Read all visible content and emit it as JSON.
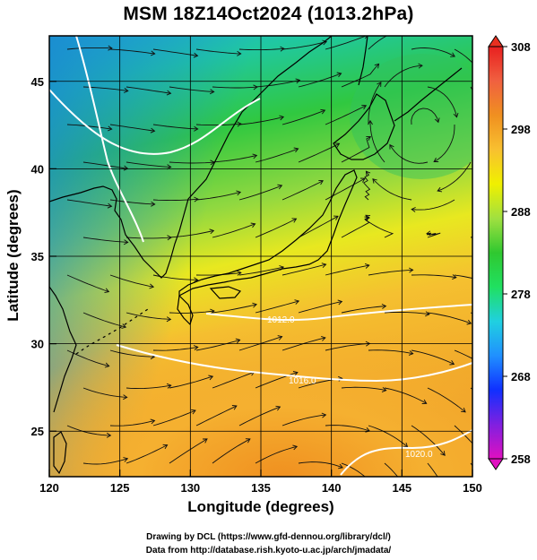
{
  "title": "MSM 18Z14Oct2024 (1013.2hPa)",
  "axes": {
    "xlabel": "Longitude (degrees)",
    "ylabel": "Latitude  (degrees)",
    "xlim": [
      120,
      150
    ],
    "ylim": [
      22.4,
      47.6
    ],
    "xticks": [
      120,
      125,
      130,
      135,
      140,
      145,
      150
    ],
    "yticks": [
      25,
      30,
      35,
      40,
      45
    ]
  },
  "colorbar": {
    "min": 258,
    "max": 308,
    "ticks": [
      258,
      268,
      278,
      288,
      298,
      308
    ],
    "colors": [
      "#e010c0",
      "#8020e0",
      "#1030ff",
      "#2090ff",
      "#20d0e0",
      "#20e060",
      "#30c830",
      "#a0e040",
      "#f0f000",
      "#f8c030",
      "#f09020",
      "#f06040",
      "#e82020"
    ]
  },
  "isobars": [
    {
      "label": "1012.0"
    },
    {
      "label": "1016.0"
    },
    {
      "label": "1020.0"
    }
  ],
  "footer": {
    "line1": "Drawing by DCL (https://www.gfd-dennou.org/library/dcl/)",
    "line2": "Data from http://database.rish.kyoto-u.ac.jp/arch/jmadata/"
  },
  "colors": {
    "land_outline": "#000000",
    "isobar": "#ffffff",
    "grid": "#000000"
  }
}
